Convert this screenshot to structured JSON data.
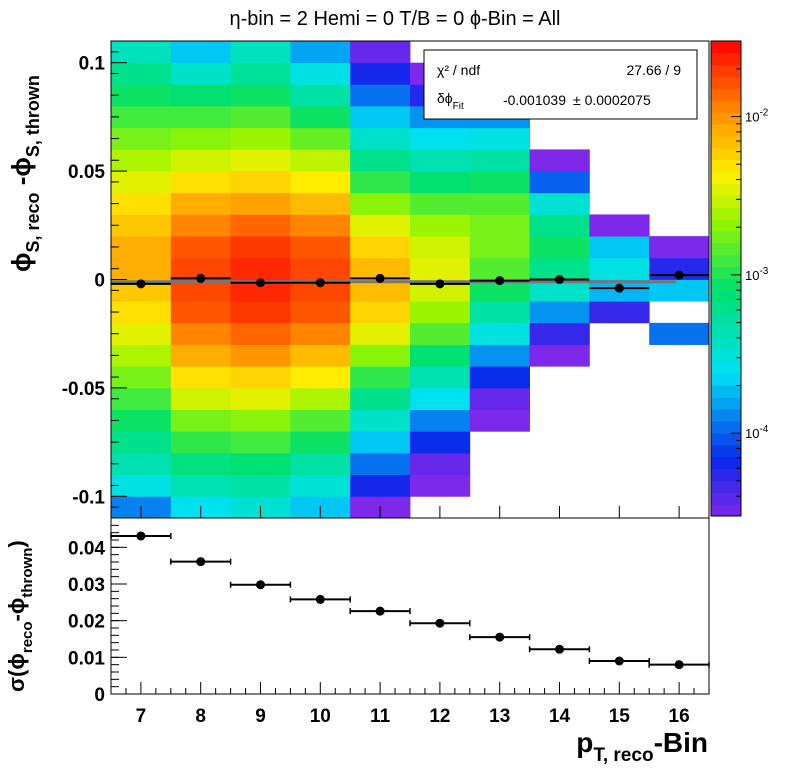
{
  "chart_data": [
    {
      "type": "heatmap",
      "title": "η-bin = 2 Hemi = 0 T/B = 0   ϕ-Bin = All",
      "xlabel": "p_T, reco-Bin",
      "ylabel": "ϕ_S, reco - ϕ_S, thrown",
      "xlim": [
        6.5,
        16.5
      ],
      "ylim": [
        -0.11,
        0.11
      ],
      "x_ticks": [
        "7",
        "8",
        "9",
        "10",
        "11",
        "12",
        "13",
        "14",
        "15",
        "16"
      ],
      "y_ticks": [
        "0.1",
        "0.05",
        "0",
        "-0.05",
        "-0.1"
      ],
      "colorbar": {
        "scale": "log",
        "range": [
          3e-05,
          0.03
        ],
        "tick_labels": [
          "10^-2",
          "10^-3",
          "10^-4"
        ]
      },
      "bin_width_y": 0.01,
      "columns": [
        {
          "x": 7,
          "ymin": -0.11,
          "log10_values": [
            -3.9,
            -3.55,
            -3.35,
            -3.2,
            -3.05,
            -2.9,
            -2.75,
            -2.6,
            -2.45,
            -2.3,
            -2.2,
            -2.1,
            -2.1,
            -2.2,
            -2.3,
            -2.45,
            -2.6,
            -2.75,
            -2.9,
            -3.05,
            -3.2,
            -3.4
          ]
        },
        {
          "x": 8,
          "ymin": -0.11,
          "log10_values": [
            -3.6,
            -3.35,
            -3.15,
            -2.95,
            -2.75,
            -2.5,
            -2.3,
            -2.1,
            -1.95,
            -1.8,
            -1.75,
            -1.75,
            -1.8,
            -1.95,
            -2.1,
            -2.3,
            -2.5,
            -2.7,
            -2.9,
            -3.1,
            -3.45,
            -3.7
          ]
        },
        {
          "x": 9,
          "ymin": -0.11,
          "log10_values": [
            -3.5,
            -3.3,
            -3.1,
            -2.9,
            -2.7,
            -2.45,
            -2.25,
            -2.0,
            -1.85,
            -1.7,
            -1.65,
            -1.65,
            -1.7,
            -1.85,
            -2.05,
            -2.25,
            -2.45,
            -2.65,
            -2.85,
            -3.05,
            -3.25,
            -3.4
          ]
        },
        {
          "x": 10,
          "ymin": -0.11,
          "log10_values": [
            -3.7,
            -3.5,
            -3.3,
            -3.05,
            -2.85,
            -2.6,
            -2.35,
            -2.15,
            -1.95,
            -1.8,
            -1.75,
            -1.75,
            -1.8,
            -1.95,
            -2.15,
            -2.35,
            -2.55,
            -2.8,
            -3.05,
            -3.3,
            -3.55,
            -3.8
          ]
        },
        {
          "x": 11,
          "ymin": -0.11,
          "log10_values": [
            -4.6,
            -4.2,
            -3.95,
            -3.7,
            -3.45,
            -3.2,
            -2.95,
            -2.7,
            -2.45,
            -2.25,
            -2.15,
            -2.15,
            -2.25,
            -2.45,
            -2.7,
            -2.95,
            -3.2,
            -3.45,
            -3.7,
            -3.95,
            -4.2,
            -4.45
          ]
        },
        {
          "x": 12,
          "ymin": -0.1,
          "log10_values": [
            -4.9,
            -4.45,
            -4.15,
            -3.9,
            -3.6,
            -3.35,
            -3.1,
            -2.85,
            -2.65,
            -2.5,
            -2.45,
            -2.5,
            -2.65,
            -2.85,
            -3.1,
            -3.35,
            -3.6,
            -3.85,
            -4.25,
            -4.6
          ]
        },
        {
          "x": 13,
          "ymin": -0.07,
          "log10_values": [
            -4.75,
            -4.45,
            -4.15,
            -3.85,
            -3.55,
            -3.3,
            -3.05,
            -2.85,
            -2.75,
            -2.75,
            -2.85,
            -3.05,
            -3.3,
            -3.55,
            -3.85
          ]
        },
        {
          "x": 14,
          "ymin": -0.04,
          "log10_values": [
            -4.7,
            -4.3,
            -3.85,
            -3.45,
            -3.2,
            -3.05,
            -3.2,
            -3.5,
            -4.0,
            -4.55
          ]
        },
        {
          "x": 15,
          "ymin": -0.02,
          "log10_values": [
            -4.3,
            -3.75,
            -3.55,
            -3.7,
            -4.65
          ]
        },
        {
          "x": 16,
          "ymin": -0.03,
          "log10_values": [
            -3.95,
            null,
            -3.7,
            -4.25,
            -4.55
          ]
        }
      ],
      "series": [
        {
          "name": "mean",
          "x": [
            7,
            8,
            9,
            10,
            11,
            12,
            13,
            14,
            15,
            16
          ],
          "y": [
            -0.002,
            0.0005,
            -0.0015,
            -0.0015,
            0.0005,
            -0.002,
            -0.0005,
            0.0,
            -0.004,
            0.002
          ]
        }
      ],
      "fit": {
        "type": "constant",
        "value": -0.001039,
        "x_range": [
          6.5,
          15.95
        ]
      },
      "legend": {
        "position": "top-right",
        "rows": [
          {
            "label": "χ² / ndf",
            "value": "27.66 / 9"
          },
          {
            "label": "δϕ_Fit",
            "value": "-0.001039",
            "error": "±  0.0002075"
          }
        ]
      }
    },
    {
      "type": "scatter",
      "xlabel": "p_T, reco-Bin",
      "ylabel": "σ(ϕ_reco - ϕ_thrown)",
      "xlim": [
        6.5,
        16.5
      ],
      "ylim": [
        0,
        0.048
      ],
      "x_ticks": [
        "7",
        "8",
        "9",
        "10",
        "11",
        "12",
        "13",
        "14",
        "15",
        "16"
      ],
      "y_ticks": [
        "0.04",
        "0.03",
        "0.02",
        "0.01",
        "0"
      ],
      "series": [
        {
          "x": [
            7,
            8,
            9,
            10,
            11,
            12,
            13,
            14,
            15,
            16
          ],
          "y": [
            0.0431,
            0.0361,
            0.0298,
            0.0258,
            0.0226,
            0.0193,
            0.0155,
            0.0122,
            0.009,
            0.008
          ],
          "x_err": 0.5
        }
      ]
    }
  ]
}
